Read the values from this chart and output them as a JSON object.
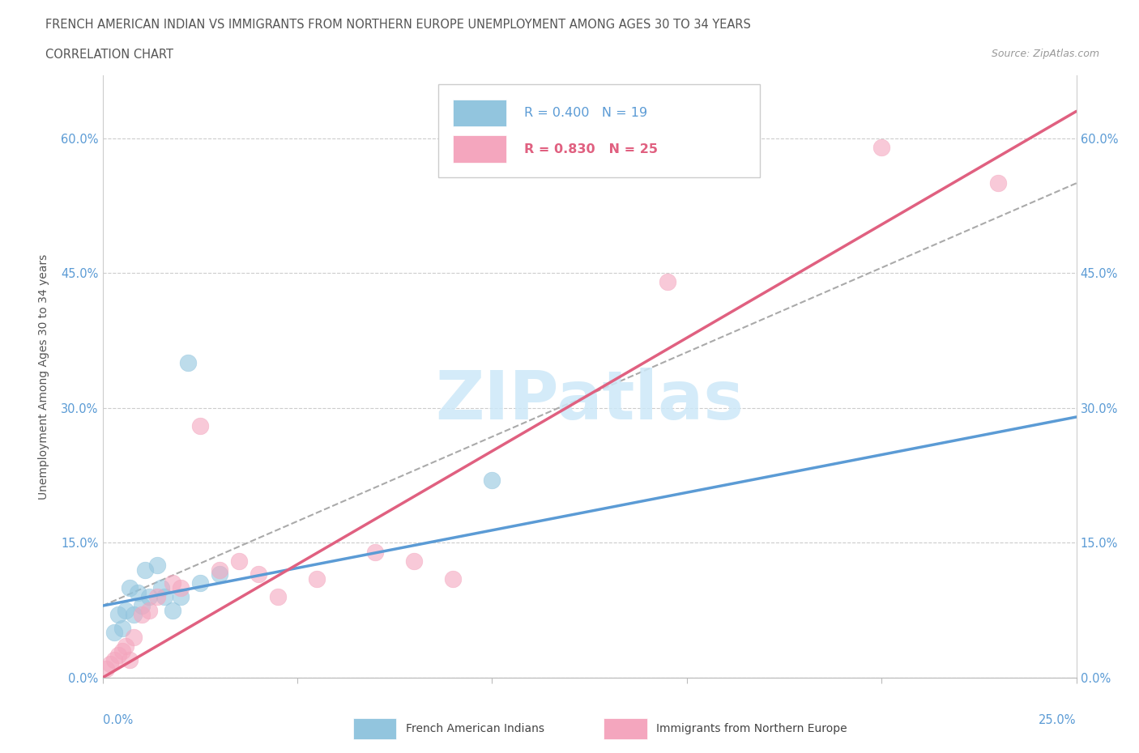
{
  "title_line1": "FRENCH AMERICAN INDIAN VS IMMIGRANTS FROM NORTHERN EUROPE UNEMPLOYMENT AMONG AGES 30 TO 34 YEARS",
  "title_line2": "CORRELATION CHART",
  "source": "Source: ZipAtlas.com",
  "ylabel": "Unemployment Among Ages 30 to 34 years",
  "watermark": "ZIPatlas",
  "legend_blue_r": "R = 0.400",
  "legend_blue_n": "N = 19",
  "legend_pink_r": "R = 0.830",
  "legend_pink_n": "N = 25",
  "legend_label_blue": "French American Indians",
  "legend_label_pink": "Immigrants from Northern Europe",
  "blue_color": "#92c5de",
  "pink_color": "#f4a6be",
  "blue_line_color": "#5b9bd5",
  "pink_line_color": "#e06080",
  "blue_scatter_x": [
    0.5,
    1.0,
    1.5,
    2.0,
    2.5,
    3.0,
    1.2,
    1.8,
    0.8,
    0.9,
    1.1,
    0.6,
    0.7,
    0.4,
    0.3,
    1.4,
    1.6,
    2.2,
    10.0
  ],
  "blue_scatter_y": [
    5.5,
    8.0,
    10.0,
    9.0,
    10.5,
    11.5,
    9.0,
    7.5,
    7.0,
    9.5,
    12.0,
    7.5,
    10.0,
    7.0,
    5.0,
    12.5,
    9.0,
    35.0,
    22.0
  ],
  "pink_scatter_x": [
    0.1,
    0.2,
    0.3,
    0.4,
    0.5,
    0.6,
    0.7,
    0.8,
    1.0,
    1.2,
    1.4,
    1.8,
    2.0,
    2.5,
    3.0,
    3.5,
    4.0,
    4.5,
    5.5,
    7.0,
    8.0,
    9.0,
    14.5,
    20.0,
    23.0
  ],
  "pink_scatter_y": [
    1.0,
    1.5,
    2.0,
    2.5,
    3.0,
    3.5,
    2.0,
    4.5,
    7.0,
    7.5,
    9.0,
    10.5,
    10.0,
    28.0,
    12.0,
    13.0,
    11.5,
    9.0,
    11.0,
    14.0,
    13.0,
    11.0,
    44.0,
    59.0,
    55.0
  ],
  "blue_line_x": [
    0.0,
    25.0
  ],
  "blue_line_y": [
    8.0,
    29.0
  ],
  "pink_line_x": [
    0.0,
    25.0
  ],
  "pink_line_y": [
    0.0,
    63.0
  ],
  "dash_line_x": [
    0.0,
    25.0
  ],
  "dash_line_y": [
    8.0,
    55.0
  ],
  "xmin": 0.0,
  "xmax": 25.0,
  "ymin": 0.0,
  "ymax": 67.0,
  "ytick_vals": [
    0.0,
    15.0,
    30.0,
    45.0,
    60.0
  ],
  "xtick_positions": [
    0.0,
    5.0,
    10.0,
    15.0,
    20.0,
    25.0
  ]
}
